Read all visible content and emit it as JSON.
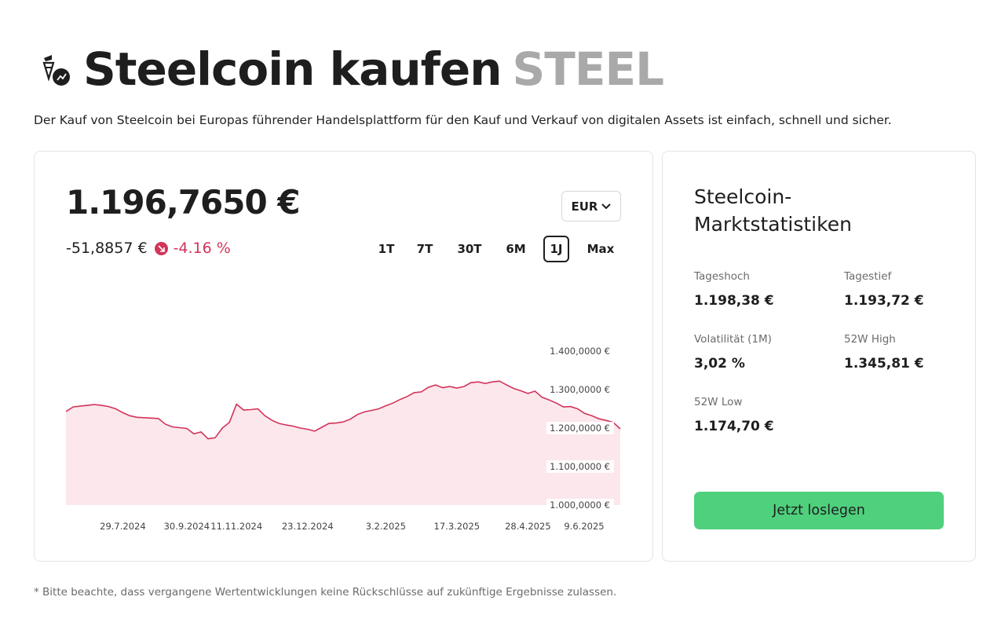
{
  "header": {
    "title": "Steelcoin kaufen",
    "symbol": "STEEL",
    "logo_icon": "steelcoin-logo-icon",
    "description": "Der Kauf von Steelcoin bei Europas führender Handelsplattform für den Kauf und Verkauf von digitalen Assets ist einfach, schnell und sicher."
  },
  "price_card": {
    "price": "1.196,7650 €",
    "change_abs": "-51,8857 €",
    "change_pct": "-4.16 %",
    "change_icon": "arrow-down-right-icon",
    "currency": "EUR",
    "ranges": [
      "1T",
      "7T",
      "30T",
      "6M",
      "1J",
      "Max"
    ],
    "active_range": "1J"
  },
  "colors": {
    "line": "#d2345a",
    "area": "#fbe7ec",
    "negative": "#d2345a",
    "cta": "#4fd07d",
    "symbol": "#a9a9a9"
  },
  "chart_data": {
    "type": "area",
    "title": "",
    "xlabel": "",
    "ylabel": "",
    "ylim": [
      1000,
      1400
    ],
    "yticks": [
      1400,
      1300,
      1200,
      1100,
      1000
    ],
    "ytick_labels": [
      "1.400,0000 €",
      "1.300,0000 €",
      "1.200,0000 €",
      "1.100,0000 €",
      "1.000,0000 €"
    ],
    "xtick_labels": [
      "29.7.2024",
      "30.9.2024",
      "11.11.2024",
      "23.12.2024",
      "3.2.2025",
      "17.3.2025",
      "28.4.2025",
      "9.6.2025"
    ],
    "xtick_index": [
      8,
      17,
      24,
      34,
      45,
      55,
      65,
      75
    ],
    "series": [
      {
        "values": [
          1243,
          1255,
          1257,
          1259,
          1261,
          1259,
          1256,
          1250,
          1240,
          1232,
          1228,
          1227,
          1226,
          1225,
          1210,
          1203,
          1201,
          1199,
          1185,
          1190,
          1172,
          1175,
          1200,
          1215,
          1262,
          1247,
          1248,
          1250,
          1232,
          1220,
          1212,
          1208,
          1205,
          1200,
          1197,
          1192,
          1202,
          1212,
          1213,
          1216,
          1223,
          1235,
          1242,
          1246,
          1250,
          1258,
          1265,
          1274,
          1282,
          1292,
          1294,
          1306,
          1312,
          1305,
          1308,
          1304,
          1308,
          1318,
          1320,
          1316,
          1320,
          1322,
          1312,
          1303,
          1297,
          1290,
          1296,
          1280,
          1273,
          1265,
          1255,
          1256,
          1250,
          1238,
          1232,
          1224,
          1220,
          1215,
          1198
        ]
      }
    ]
  },
  "stats": {
    "title": "Steelcoin-Marktstatistiken",
    "items": [
      {
        "label": "Tageshoch",
        "value": "1.198,38 €"
      },
      {
        "label": "Tagestief",
        "value": "1.193,72 €"
      },
      {
        "label": "Volatilität (1M)",
        "value": "3,02 %"
      },
      {
        "label": "52W High",
        "value": "1.345,81 €"
      },
      {
        "label": "52W Low",
        "value": "1.174,70 €"
      }
    ],
    "cta_label": "Jetzt loslegen"
  },
  "disclaimer": "* Bitte beachte, dass vergangene Wertentwicklungen keine Rückschlüsse auf zukünftige Ergebnisse zulassen."
}
